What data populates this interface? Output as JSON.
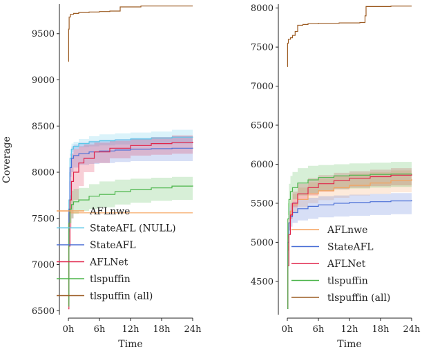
{
  "chart_data": [
    {
      "type": "line",
      "xlabel": "Time",
      "ylabel": "Coverage",
      "x_tick_labels": [
        "0h",
        "6h",
        "12h",
        "18h",
        "24h"
      ],
      "x_ticks_hours": [
        0,
        6,
        12,
        18,
        24
      ],
      "xlim": [
        0,
        24
      ],
      "ylim": [
        6480,
        9820
      ],
      "y_ticks": [
        6500,
        7000,
        7500,
        8000,
        8500,
        9000,
        9500
      ],
      "legend_position": "lower-right",
      "series": [
        {
          "name": "AFLnwe",
          "color": "#f5a15a",
          "band": false,
          "x": [
            0,
            0.05,
            0.1,
            0.2,
            0.4,
            0.8,
            1.5,
            2.5,
            4,
            8,
            14,
            24
          ],
          "y": [
            6550,
            7550,
            7560,
            7560,
            7560,
            7560,
            7560,
            7560,
            7560,
            7560,
            7560,
            7560
          ]
        },
        {
          "name": "StateAFL (NULL)",
          "color": "#5bc8e8",
          "band": true,
          "x": [
            0,
            0.1,
            0.3,
            0.6,
            1,
            2,
            4,
            6,
            9,
            12,
            16,
            20,
            24
          ],
          "y": [
            6600,
            7700,
            8150,
            8250,
            8280,
            8310,
            8330,
            8340,
            8350,
            8360,
            8370,
            8380,
            8385
          ],
          "lo": [
            6600,
            7500,
            8000,
            8180,
            8220,
            8250,
            8270,
            8280,
            8290,
            8300,
            8300,
            8300,
            8310
          ],
          "hi": [
            6600,
            7900,
            8250,
            8310,
            8330,
            8360,
            8390,
            8410,
            8420,
            8430,
            8440,
            8460,
            8470
          ]
        },
        {
          "name": "StateAFL",
          "color": "#4a6fd6",
          "band": true,
          "x": [
            0,
            0.1,
            0.3,
            0.6,
            1,
            2,
            4,
            6,
            9,
            12,
            16,
            20,
            24
          ],
          "y": [
            6550,
            7600,
            8050,
            8150,
            8180,
            8200,
            8220,
            8230,
            8240,
            8250,
            8255,
            8260,
            8265
          ],
          "lo": [
            6550,
            7300,
            7700,
            7950,
            8000,
            8050,
            8080,
            8090,
            8100,
            8110,
            8120,
            8120,
            8120
          ],
          "hi": [
            6550,
            7900,
            8200,
            8280,
            8300,
            8320,
            8340,
            8350,
            8360,
            8370,
            8380,
            8390,
            8400
          ]
        },
        {
          "name": "AFLNet",
          "color": "#e0244a",
          "band": true,
          "x": [
            0,
            0.1,
            0.3,
            0.6,
            1,
            2,
            3,
            5,
            8,
            12,
            16,
            20,
            24
          ],
          "y": [
            6520,
            7200,
            7700,
            7900,
            8000,
            8100,
            8150,
            8220,
            8260,
            8290,
            8310,
            8320,
            8330
          ],
          "lo": [
            6480,
            6900,
            7200,
            7400,
            7500,
            7700,
            7850,
            8000,
            8100,
            8150,
            8180,
            8190,
            8200
          ],
          "hi": [
            6550,
            7600,
            8050,
            8200,
            8250,
            8280,
            8300,
            8320,
            8340,
            8360,
            8380,
            8400,
            8410
          ]
        },
        {
          "name": "tlspuffin",
          "color": "#4bb54a",
          "band": true,
          "x": [
            0,
            0.1,
            0.3,
            0.6,
            1,
            2,
            4,
            6,
            9,
            12,
            16,
            20,
            24
          ],
          "y": [
            6550,
            7450,
            7600,
            7650,
            7680,
            7700,
            7740,
            7760,
            7790,
            7810,
            7830,
            7850,
            7855
          ],
          "lo": [
            6550,
            7200,
            7350,
            7450,
            7500,
            7550,
            7580,
            7600,
            7620,
            7650,
            7670,
            7690,
            7700
          ],
          "hi": [
            6550,
            7600,
            7750,
            7800,
            7820,
            7830,
            7870,
            7900,
            7920,
            7930,
            7940,
            7950,
            7960
          ]
        },
        {
          "name": "tlspuffin (all)",
          "color": "#9c5b22",
          "band": false,
          "x": [
            0,
            0.05,
            0.15,
            0.4,
            1,
            2,
            4,
            6,
            8,
            9.5,
            10,
            14,
            18,
            24
          ],
          "y": [
            9200,
            9550,
            9680,
            9710,
            9720,
            9730,
            9735,
            9740,
            9745,
            9745,
            9790,
            9800,
            9800,
            9800
          ]
        }
      ]
    },
    {
      "type": "line",
      "xlabel": "Time",
      "ylabel": "",
      "x_tick_labels": [
        "0h",
        "6h",
        "12h",
        "18h",
        "24h"
      ],
      "x_ticks_hours": [
        0,
        6,
        12,
        18,
        24
      ],
      "xlim": [
        0,
        24
      ],
      "ylim": [
        4100,
        8050
      ],
      "y_ticks": [
        4500,
        5000,
        5500,
        6000,
        6500,
        7000,
        7500,
        8000
      ],
      "legend_position": "lower-right",
      "series": [
        {
          "name": "AFLnwe",
          "color": "#f5a15a",
          "band": true,
          "x": [
            0,
            0.1,
            0.3,
            0.6,
            1,
            2,
            4,
            6,
            9,
            12,
            16,
            20,
            24
          ],
          "y": [
            4150,
            4900,
            5250,
            5400,
            5480,
            5550,
            5620,
            5660,
            5700,
            5730,
            5760,
            5790,
            5810
          ],
          "lo": [
            4150,
            4700,
            5050,
            5200,
            5300,
            5380,
            5450,
            5500,
            5540,
            5570,
            5600,
            5620,
            5640
          ],
          "hi": [
            4150,
            5100,
            5400,
            5550,
            5620,
            5700,
            5770,
            5810,
            5850,
            5880,
            5900,
            5920,
            5930
          ]
        },
        {
          "name": "StateAFL",
          "color": "#4a6fd6",
          "band": true,
          "x": [
            0,
            0.1,
            0.3,
            0.6,
            1,
            2,
            4,
            6,
            9,
            12,
            16,
            20,
            24
          ],
          "y": [
            4150,
            5000,
            5250,
            5330,
            5380,
            5430,
            5460,
            5480,
            5500,
            5510,
            5520,
            5530,
            5540
          ],
          "lo": [
            4150,
            4800,
            5050,
            5150,
            5200,
            5250,
            5280,
            5300,
            5320,
            5330,
            5340,
            5350,
            5360
          ],
          "hi": [
            4150,
            5200,
            5450,
            5500,
            5520,
            5550,
            5570,
            5590,
            5600,
            5610,
            5620,
            5630,
            5640
          ]
        },
        {
          "name": "AFLNet",
          "color": "#e0244a",
          "band": true,
          "x": [
            0,
            0.1,
            0.3,
            0.6,
            1,
            2,
            4,
            6,
            9,
            12,
            16,
            20,
            24
          ],
          "y": [
            4150,
            4700,
            5100,
            5350,
            5500,
            5620,
            5700,
            5750,
            5790,
            5820,
            5840,
            5860,
            5870
          ],
          "lo": [
            4150,
            4500,
            4900,
            5150,
            5300,
            5450,
            5550,
            5600,
            5650,
            5680,
            5700,
            5720,
            5730
          ],
          "hi": [
            4150,
            4950,
            5300,
            5500,
            5650,
            5750,
            5820,
            5860,
            5890,
            5910,
            5930,
            5950,
            5960
          ]
        },
        {
          "name": "tlspuffin",
          "color": "#4bb54a",
          "band": true,
          "x": [
            0,
            0.1,
            0.3,
            0.6,
            1,
            2,
            4,
            6,
            9,
            12,
            16,
            20,
            24
          ],
          "y": [
            4150,
            5300,
            5550,
            5650,
            5700,
            5760,
            5800,
            5830,
            5850,
            5860,
            5870,
            5875,
            5880
          ],
          "lo": [
            4150,
            5100,
            5350,
            5450,
            5500,
            5550,
            5600,
            5630,
            5660,
            5680,
            5690,
            5700,
            5710
          ],
          "hi": [
            4150,
            5500,
            5750,
            5850,
            5900,
            5950,
            5980,
            5990,
            6000,
            6010,
            6020,
            6030,
            6040
          ]
        },
        {
          "name": "tlspuffin (all)",
          "color": "#9c5b22",
          "band": false,
          "x": [
            0,
            0.05,
            0.2,
            0.6,
            1,
            1.5,
            2,
            3,
            4,
            6,
            10,
            14,
            15,
            15.2,
            20,
            24
          ],
          "y": [
            7250,
            7550,
            7600,
            7620,
            7650,
            7700,
            7780,
            7790,
            7800,
            7805,
            7810,
            7815,
            7900,
            8020,
            8025,
            8025
          ]
        }
      ]
    }
  ]
}
